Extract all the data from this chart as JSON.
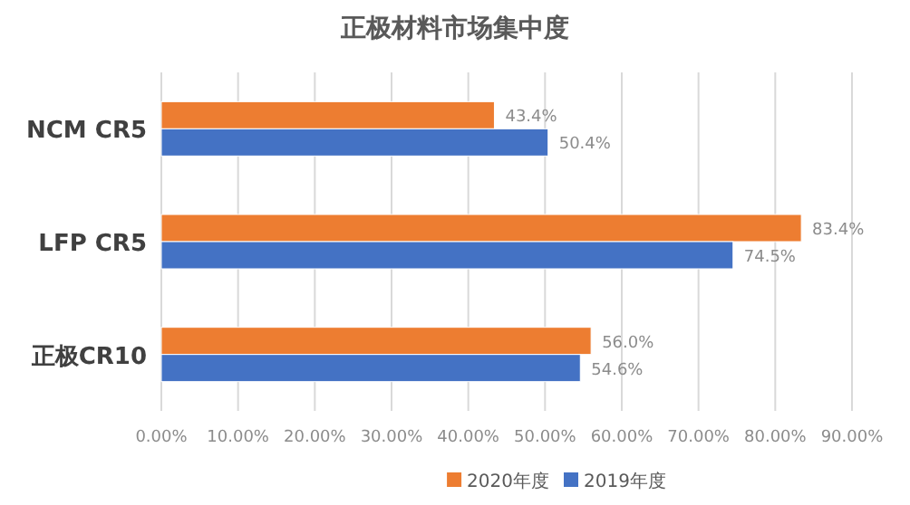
{
  "chart_data": {
    "type": "bar",
    "orientation": "horizontal",
    "title": "正极材料市场集中度",
    "categories": [
      "NCM CR5",
      "LFP CR5",
      "正极CR10"
    ],
    "series": [
      {
        "name": "2020年度",
        "color": "#ed7d31",
        "values": [
          43.4,
          83.4,
          56.0
        ],
        "value_labels": [
          "43.4%",
          "83.4%",
          "56.0%"
        ]
      },
      {
        "name": "2019年度",
        "color": "#4472c4",
        "values": [
          50.4,
          74.5,
          54.6
        ],
        "value_labels": [
          "50.4%",
          "74.5%",
          "54.6%"
        ]
      }
    ],
    "xlim": [
      0,
      90
    ],
    "xticks": [
      {
        "value": 0,
        "label": "0.00%"
      },
      {
        "value": 10,
        "label": "10.00%"
      },
      {
        "value": 20,
        "label": "20.00%"
      },
      {
        "value": 30,
        "label": "30.00%"
      },
      {
        "value": 40,
        "label": "40.00%"
      },
      {
        "value": 50,
        "label": "50.00%"
      },
      {
        "value": 60,
        "label": "60.00%"
      },
      {
        "value": 70,
        "label": "70.00%"
      },
      {
        "value": 80,
        "label": "80.00%"
      },
      {
        "value": 90,
        "label": "90.00%"
      }
    ],
    "grid": "x",
    "legend": "bottom"
  }
}
